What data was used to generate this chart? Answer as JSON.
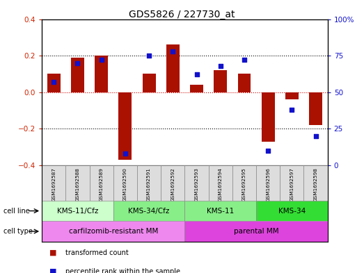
{
  "title": "GDS5826 / 227730_at",
  "samples": [
    "GSM1692587",
    "GSM1692588",
    "GSM1692589",
    "GSM1692590",
    "GSM1692591",
    "GSM1692592",
    "GSM1692593",
    "GSM1692594",
    "GSM1692595",
    "GSM1692596",
    "GSM1692597",
    "GSM1692598"
  ],
  "transformed_count": [
    0.1,
    0.19,
    0.2,
    -0.37,
    0.1,
    0.26,
    0.04,
    0.12,
    0.1,
    -0.27,
    -0.04,
    -0.18
  ],
  "percentile_rank": [
    57,
    70,
    72,
    8,
    75,
    78,
    62,
    68,
    72,
    10,
    38,
    20
  ],
  "bar_color": "#aa1100",
  "dot_color": "#1111cc",
  "ylim_left": [
    -0.4,
    0.4
  ],
  "ylim_right": [
    0,
    100
  ],
  "yticks_left": [
    -0.4,
    -0.2,
    0.0,
    0.2,
    0.4
  ],
  "yticks_right": [
    0,
    25,
    50,
    75,
    100
  ],
  "cell_line_groups": [
    {
      "label": "KMS-11/Cfz",
      "start": 0,
      "end": 3,
      "color": "#ccffcc"
    },
    {
      "label": "KMS-34/Cfz",
      "start": 3,
      "end": 6,
      "color": "#88ee88"
    },
    {
      "label": "KMS-11",
      "start": 6,
      "end": 9,
      "color": "#88ee88"
    },
    {
      "label": "KMS-34",
      "start": 9,
      "end": 12,
      "color": "#33dd33"
    }
  ],
  "cell_type_groups": [
    {
      "label": "carfilzomib-resistant MM",
      "start": 0,
      "end": 6,
      "color": "#ee88ee"
    },
    {
      "label": "parental MM",
      "start": 6,
      "end": 12,
      "color": "#dd44dd"
    }
  ],
  "legend_bar_label": "transformed count",
  "legend_dot_label": "percentile rank within the sample",
  "background_color": "#ffffff",
  "zero_line_color": "#cc0000",
  "plot_bg": "#ffffff"
}
